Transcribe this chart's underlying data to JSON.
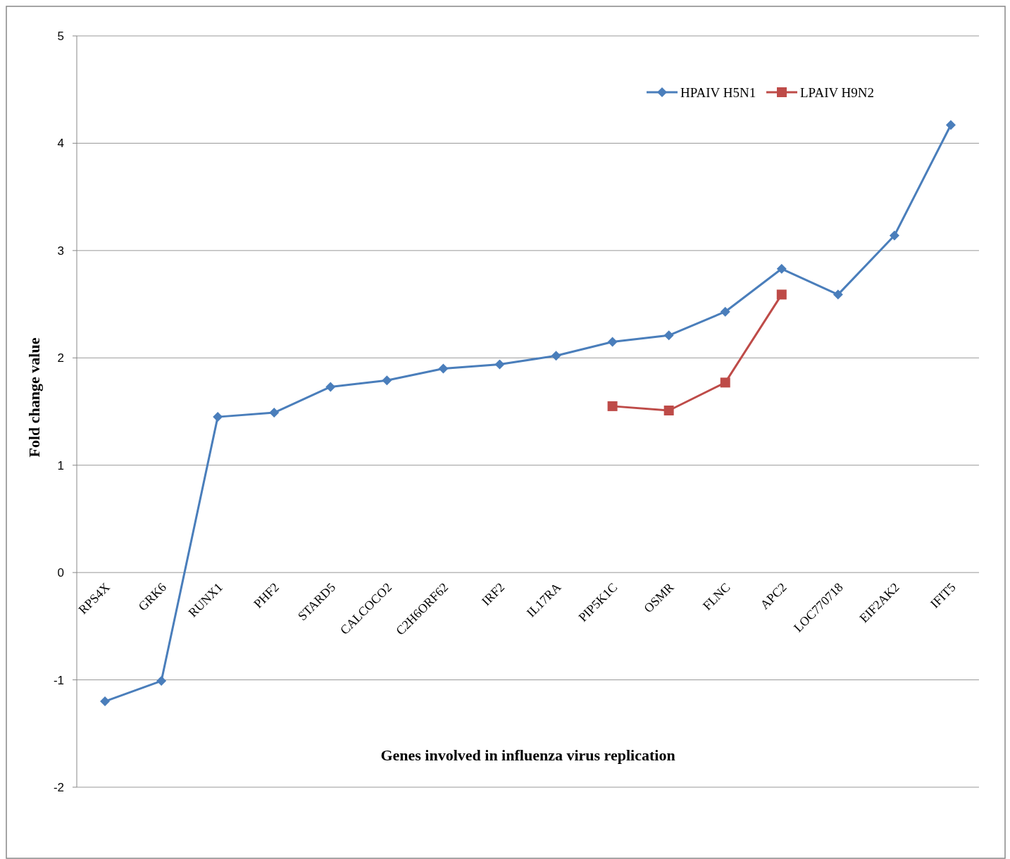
{
  "chart_data": {
    "type": "line",
    "xlabel": "Genes involved in influenza virus replication",
    "ylabel": "Fold change value",
    "categories": [
      "RPS4X",
      "GRK6",
      "RUNX1",
      "PHF2",
      "STARD5",
      "CALCOCO2",
      "C2H6ORF62",
      "IRF2",
      "IL17RA",
      "PIP5K1C",
      "OSMR",
      "FLNC",
      "APC2",
      "LOC770718",
      "EIF2AK2",
      "IFIT5"
    ],
    "series": [
      {
        "name": "HPAIV H5N1",
        "color": "#4a7ebb",
        "marker": "diamond",
        "values": [
          -1.2,
          -1.01,
          1.45,
          1.49,
          1.73,
          1.79,
          1.9,
          1.94,
          2.02,
          2.15,
          2.21,
          2.43,
          2.83,
          2.59,
          3.14,
          4.17
        ]
      },
      {
        "name": "LPAIV H9N2",
        "color": "#be4b48",
        "marker": "square",
        "values": [
          null,
          null,
          null,
          null,
          null,
          null,
          null,
          null,
          null,
          1.55,
          1.51,
          1.77,
          2.59,
          null,
          null,
          null
        ]
      }
    ],
    "ylim": [
      -2,
      5
    ],
    "yticks": [
      -2,
      -1,
      0,
      1,
      2,
      3,
      4,
      5
    ],
    "grid": "y",
    "legend": "top right"
  }
}
